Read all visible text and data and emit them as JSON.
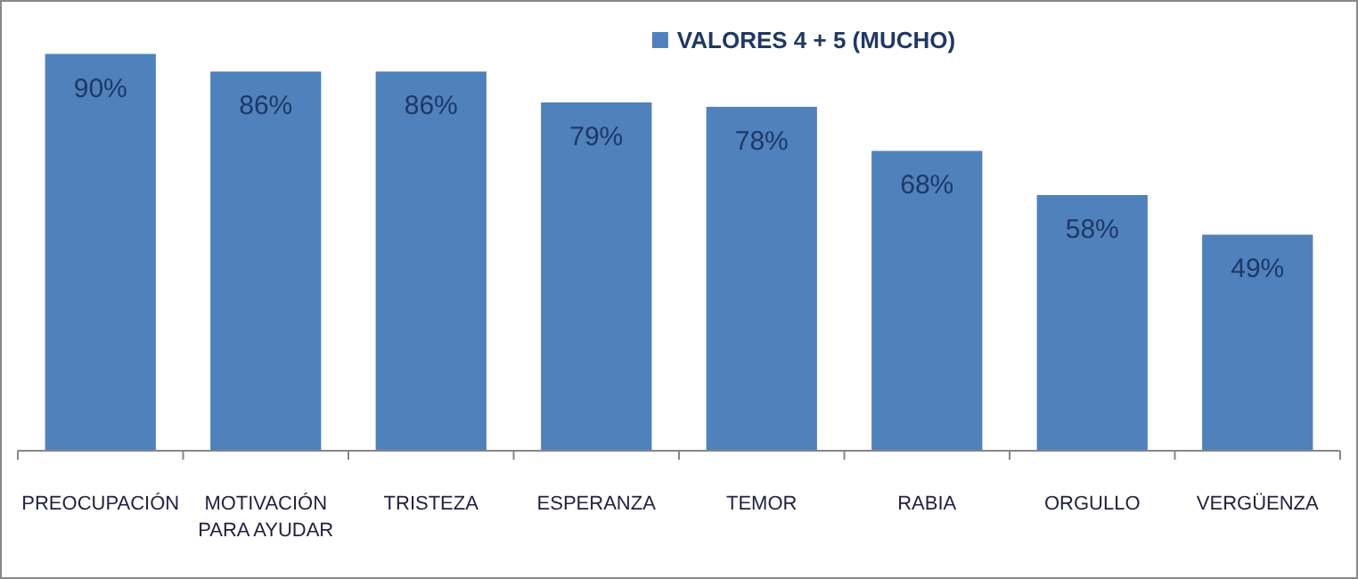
{
  "chart_data": {
    "type": "bar",
    "categories": [
      "PREOCUPACIÓN",
      "MOTIVACIÓN PARA AYUDAR",
      "TRISTEZA",
      "ESPERANZA",
      "TEMOR",
      "RABIA",
      "ORGULLO",
      "VERGÜENZA"
    ],
    "series": [
      {
        "name": "VALORES 4 + 5 (MUCHO)",
        "color": "#4f81bd",
        "values": [
          90,
          86,
          86,
          79,
          78,
          68,
          58,
          49
        ],
        "value_labels": [
          "90%",
          "86%",
          "86%",
          "79%",
          "78%",
          "68%",
          "58%",
          "49%"
        ]
      }
    ],
    "legend": "top"
  }
}
